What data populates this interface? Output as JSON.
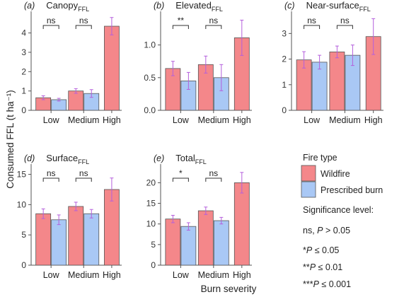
{
  "figure": {
    "ylabel": "Consumed FFL (t ha⁻¹)",
    "xlabel": "Burn severity"
  },
  "legend": {
    "title": "Fire type",
    "items": [
      {
        "name": "Wildfire",
        "color": "#f4878a"
      },
      {
        "name": "Prescribed burn",
        "color": "#a9c8f5"
      }
    ],
    "significance_title": "Significance level:",
    "significance_items": [
      {
        "pre": "ns, ",
        "italic": "P",
        "post": " > 0.05"
      },
      {
        "pre": "*",
        "italic": "P",
        "post": " ≤ 0.05"
      },
      {
        "pre": "**",
        "italic": "P",
        "post": " ≤ 0.01"
      },
      {
        "pre": "***",
        "italic": "P",
        "post": " ≤ 0.001"
      }
    ]
  },
  "colors": {
    "wildfire": "#f4878a",
    "prescribed": "#a9c8f5",
    "error_bar": "#b45fdc",
    "bar_stroke": "#555555"
  },
  "chart_data": [
    {
      "panel": "(a)",
      "title": "Canopy",
      "subscript": "FFL",
      "type": "bar",
      "categories": [
        "Low",
        "Medium",
        "High"
      ],
      "ylim": [
        0,
        4.9
      ],
      "yticks": [
        0,
        1,
        2,
        3,
        4
      ],
      "series": [
        {
          "name": "Wildfire",
          "values": [
            0.65,
            1.0,
            4.35
          ],
          "errors": [
            0.1,
            0.12,
            0.45
          ]
        },
        {
          "name": "Prescribed burn",
          "values": [
            0.55,
            0.87,
            null
          ],
          "errors": [
            0.07,
            0.2,
            null
          ]
        }
      ],
      "significance": [
        "ns",
        "ns",
        null
      ]
    },
    {
      "panel": "(b)",
      "title": "Elevated",
      "subscript": "FFL",
      "type": "bar",
      "categories": [
        "Low",
        "Medium",
        "High"
      ],
      "ylim": [
        0,
        1.45
      ],
      "yticks": [
        0.0,
        0.5,
        1.0
      ],
      "series": [
        {
          "name": "Wildfire",
          "values": [
            0.64,
            0.7,
            1.11
          ],
          "errors": [
            0.11,
            0.13,
            0.27
          ]
        },
        {
          "name": "Prescribed burn",
          "values": [
            0.45,
            0.5,
            null
          ],
          "errors": [
            0.13,
            0.2,
            null
          ]
        }
      ],
      "significance": [
        "**",
        "ns",
        null
      ]
    },
    {
      "panel": "(c)",
      "title": "Near-surface",
      "subscript": "FFL",
      "type": "bar",
      "categories": [
        "Low",
        "Medium",
        "High"
      ],
      "ylim": [
        0,
        3.7
      ],
      "yticks": [
        0,
        1,
        2,
        3
      ],
      "series": [
        {
          "name": "Wildfire",
          "values": [
            1.97,
            2.28,
            2.88
          ],
          "errors": [
            0.32,
            0.23,
            0.7
          ]
        },
        {
          "name": "Prescribed burn",
          "values": [
            1.88,
            2.15,
            null
          ],
          "errors": [
            0.27,
            0.4,
            null
          ]
        }
      ],
      "significance": [
        "ns",
        "ns",
        null
      ]
    },
    {
      "panel": "(d)",
      "title": "Surface",
      "subscript": "FFL",
      "type": "bar",
      "categories": [
        "Low",
        "Medium",
        "High"
      ],
      "ylim": [
        0,
        16
      ],
      "yticks": [
        0,
        5,
        10,
        15
      ],
      "series": [
        {
          "name": "Wildfire",
          "values": [
            8.5,
            9.7,
            12.5
          ],
          "errors": [
            0.8,
            0.7,
            1.9
          ]
        },
        {
          "name": "Prescribed burn",
          "values": [
            7.5,
            8.5,
            null
          ],
          "errors": [
            0.8,
            0.7,
            null
          ]
        }
      ],
      "significance": [
        "ns",
        "ns",
        null
      ]
    },
    {
      "panel": "(e)",
      "title": "Total",
      "subscript": "FFL",
      "type": "bar",
      "categories": [
        "Low",
        "Medium",
        "High"
      ],
      "ylim": [
        0,
        23.5
      ],
      "yticks": [
        0,
        5,
        10,
        15,
        20
      ],
      "series": [
        {
          "name": "Wildfire",
          "values": [
            11.2,
            13.2,
            20.0
          ],
          "errors": [
            0.9,
            0.9,
            2.5
          ]
        },
        {
          "name": "Prescribed burn",
          "values": [
            9.4,
            10.8,
            null
          ],
          "errors": [
            0.9,
            0.8,
            null
          ]
        }
      ],
      "significance": [
        "*",
        "ns",
        null
      ]
    }
  ]
}
